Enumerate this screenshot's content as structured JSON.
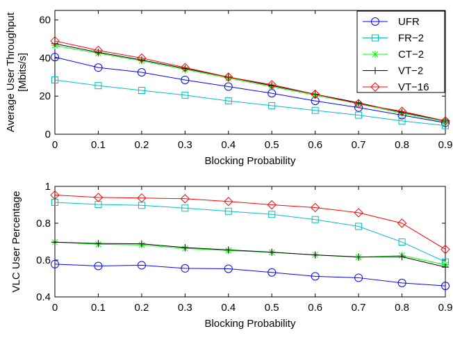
{
  "chart_data": [
    {
      "type": "line",
      "title": "",
      "xlabel": "Blocking Probability",
      "ylabel": [
        "Average User Throughput",
        "[Mbits/s]"
      ],
      "xlim": [
        0,
        0.9
      ],
      "ylim": [
        0,
        65
      ],
      "xticks": [
        0,
        0.1,
        0.2,
        0.3,
        0.4,
        0.5,
        0.6,
        0.7,
        0.8,
        0.9
      ],
      "xtick_labels": [
        "0",
        "0.1",
        "0.2",
        "0.3",
        "0.4",
        "0.5",
        "0.6",
        "0.7",
        "0.8",
        "0.9"
      ],
      "yticks": [
        0,
        20,
        40,
        60
      ],
      "ytick_labels": [
        "0",
        "20",
        "40",
        "60"
      ],
      "grid": false,
      "legend": "top-right",
      "x": [
        0,
        0.1,
        0.2,
        0.3,
        0.4,
        0.5,
        0.6,
        0.7,
        0.8,
        0.9
      ],
      "series": [
        {
          "name": "UFR",
          "color": "#0000ff",
          "marker": "circle",
          "values": [
            40.5,
            35,
            32.5,
            28.5,
            25,
            21.5,
            17.5,
            14,
            10,
            6
          ]
        },
        {
          "name": "FR−2",
          "color": "#00bfbf",
          "marker": "square",
          "values": [
            28.5,
            25.5,
            23,
            20.5,
            17.5,
            15,
            12.5,
            10,
            7,
            4.5
          ]
        },
        {
          "name": "CT−2",
          "color": "#00ff00",
          "marker": "asterisk",
          "values": [
            46.5,
            42.5,
            38.5,
            34,
            29.5,
            25,
            20.5,
            16,
            11,
            6.5
          ]
        },
        {
          "name": "VT−2",
          "color": "#000000",
          "marker": "plus",
          "values": [
            47.5,
            43,
            39,
            34.5,
            30,
            25.5,
            21,
            16.5,
            11.5,
            7
          ]
        },
        {
          "name": "VT−16",
          "color": "#ff0000",
          "marker": "diamond",
          "values": [
            49,
            44,
            40,
            35,
            30,
            26,
            21,
            16,
            12,
            7
          ]
        }
      ]
    },
    {
      "type": "line",
      "title": "",
      "xlabel": "Blocking Probability",
      "ylabel": [
        "VLC User Percentage"
      ],
      "xlim": [
        0,
        0.9
      ],
      "ylim": [
        0.4,
        1
      ],
      "xticks": [
        0,
        0.1,
        0.2,
        0.3,
        0.4,
        0.5,
        0.6,
        0.7,
        0.8,
        0.9
      ],
      "xtick_labels": [
        "0",
        "0.1",
        "0.2",
        "0.3",
        "0.4",
        "0.5",
        "0.6",
        "0.7",
        "0.8",
        "0.9"
      ],
      "yticks": [
        0.4,
        0.6,
        0.8,
        1
      ],
      "ytick_labels": [
        "0.4",
        "0.6",
        "0.8",
        "1"
      ],
      "grid": false,
      "x": [
        0,
        0.1,
        0.2,
        0.3,
        0.4,
        0.5,
        0.6,
        0.7,
        0.8,
        0.9
      ],
      "series": [
        {
          "name": "UFR",
          "color": "#0000ff",
          "marker": "circle",
          "values": [
            0.578,
            0.568,
            0.572,
            0.555,
            0.553,
            0.533,
            0.512,
            0.504,
            0.476,
            0.46
          ]
        },
        {
          "name": "FR−2",
          "color": "#00bfbf",
          "marker": "square",
          "values": [
            0.913,
            0.902,
            0.897,
            0.882,
            0.865,
            0.848,
            0.82,
            0.783,
            0.698,
            0.59
          ]
        },
        {
          "name": "CT−2",
          "color": "#00ff00",
          "marker": "asterisk",
          "values": [
            0.697,
            0.686,
            0.682,
            0.663,
            0.652,
            0.642,
            0.628,
            0.615,
            0.625,
            0.575
          ]
        },
        {
          "name": "VT−2",
          "color": "#000000",
          "marker": "plus",
          "values": [
            0.697,
            0.69,
            0.688,
            0.668,
            0.655,
            0.643,
            0.628,
            0.617,
            0.618,
            0.562
          ]
        },
        {
          "name": "VT−16",
          "color": "#ff0000",
          "marker": "diamond",
          "values": [
            0.953,
            0.94,
            0.937,
            0.933,
            0.918,
            0.9,
            0.885,
            0.857,
            0.8,
            0.658
          ]
        }
      ]
    }
  ]
}
